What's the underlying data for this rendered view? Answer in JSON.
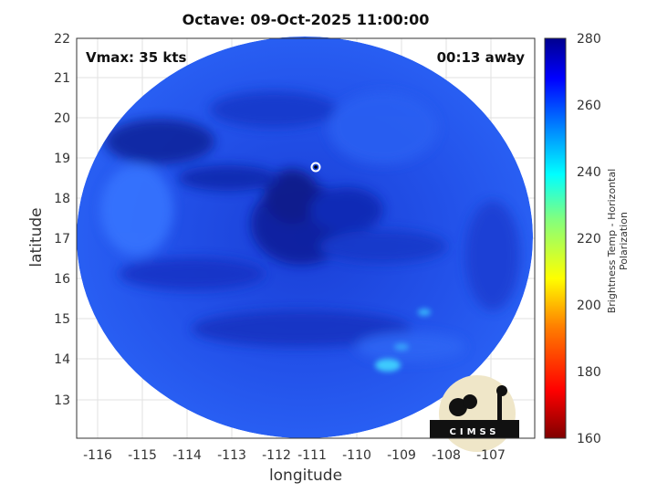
{
  "plot": {
    "title": "Octave: 09-Oct-2025 11:00:00",
    "xlabel": "longitude",
    "ylabel": "latitude",
    "vmax_label": "Vmax: 35 kts",
    "time_offset_label": "00:13 away",
    "logo_text": "CIMSS"
  },
  "x_ticks": [
    "-116",
    "-115",
    "-114",
    "-113",
    "-112",
    "-111",
    "-110",
    "-109",
    "-108",
    "-107"
  ],
  "y_ticks": [
    "22",
    "21",
    "20",
    "19",
    "18",
    "17",
    "16",
    "15",
    "14",
    "13"
  ],
  "colorbar": {
    "label": "Brightness Temp - Horizontal Polarization",
    "ticks": [
      "280",
      "260",
      "240",
      "220",
      "200",
      "180",
      "160"
    ],
    "range": [
      160,
      280
    ],
    "colormap": [
      "#7f0000",
      "#ff0000",
      "#ff8000",
      "#ffff00",
      "#80ff80",
      "#00ffff",
      "#0080ff",
      "#0000ff",
      "#00008f"
    ]
  },
  "colors": {
    "disc_base": "#1f4ce8",
    "disc_dark": "#0b1ea0",
    "disc_light": "#3070ff",
    "bright_spot": "#40d8ff",
    "frame": "#222222"
  },
  "storm_center": {
    "lon": -111.0,
    "lat": 18.8
  }
}
